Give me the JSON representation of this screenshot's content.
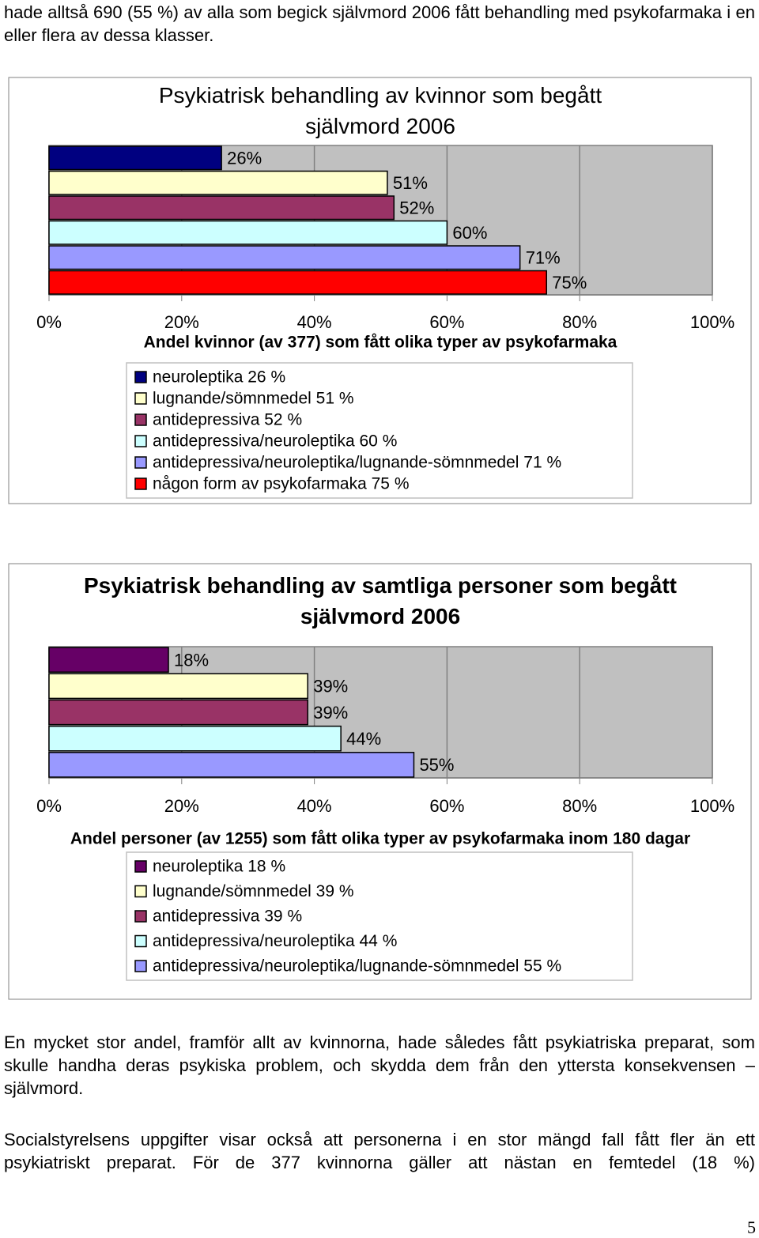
{
  "intro": "hade alltså 690 (55 %) av alla som begick självmord 2006 fått behandling med psykofarmaka i en eller flera av dessa klasser.",
  "chart_data": [
    {
      "type": "bar",
      "orientation": "horizontal",
      "title": "Psykiatrisk behandling av kvinnor som begått självmord 2006",
      "x_label": "Andel kvinnor (av 377) som fått olika typer av psykofarmaka",
      "xlim": [
        0,
        100
      ],
      "xticks": [
        {
          "value": 0,
          "label": "0%"
        },
        {
          "value": 20,
          "label": "20%"
        },
        {
          "value": 40,
          "label": "40%"
        },
        {
          "value": 60,
          "label": "60%"
        },
        {
          "value": 80,
          "label": "80%"
        },
        {
          "value": 100,
          "label": "100%"
        }
      ],
      "grid": true,
      "series": [
        {
          "name": "neuroleptika 26 %",
          "color": "#000080",
          "values": [
            26
          ],
          "value_labels": [
            "26%"
          ]
        },
        {
          "name": "lugnande/sömnmedel 51 %",
          "color": "#ffffcc",
          "values": [
            51
          ],
          "value_labels": [
            "51%"
          ]
        },
        {
          "name": "antidepressiva 52 %",
          "color": "#993366",
          "values": [
            52
          ],
          "value_labels": [
            "52%"
          ]
        },
        {
          "name": "antidepressiva/neuroleptika 60 %",
          "color": "#ccffff",
          "values": [
            60
          ],
          "value_labels": [
            "60%"
          ]
        },
        {
          "name": "antidepressiva/neuroleptika/lugnande-sömnmedel 71 %",
          "color": "#9999ff",
          "values": [
            71
          ],
          "value_labels": [
            "71%"
          ]
        },
        {
          "name": "någon form av psykofarmaka 75 %",
          "color": "#ff0000",
          "values": [
            75
          ],
          "value_labels": [
            "75%"
          ]
        }
      ]
    },
    {
      "type": "bar",
      "orientation": "horizontal",
      "title": "Psykiatrisk behandling av samtliga personer som begått självmord 2006",
      "x_label": "Andel personer (av 1255) som fått olika typer av psykofarmaka inom 180 dagar",
      "xlim": [
        0,
        100
      ],
      "xticks": [
        {
          "value": 0,
          "label": "0%"
        },
        {
          "value": 20,
          "label": "20%"
        },
        {
          "value": 40,
          "label": "40%"
        },
        {
          "value": 60,
          "label": "60%"
        },
        {
          "value": 80,
          "label": "80%"
        },
        {
          "value": 100,
          "label": "100%"
        }
      ],
      "grid": true,
      "series": [
        {
          "name": "neuroleptika 18 %",
          "color": "#660066",
          "values": [
            18
          ],
          "value_labels": [
            "18%"
          ]
        },
        {
          "name": "lugnande/sömnmedel 39 %",
          "color": "#ffffcc",
          "values": [
            39
          ],
          "value_labels": [
            "39%"
          ]
        },
        {
          "name": "antidepressiva 39 %",
          "color": "#993366",
          "values": [
            39
          ],
          "value_labels": [
            "39%"
          ]
        },
        {
          "name": "antidepressiva/neuroleptika 44 %",
          "color": "#ccffff",
          "values": [
            44
          ],
          "value_labels": [
            "44%"
          ]
        },
        {
          "name": "antidepressiva/neuroleptika/lugnande-sömnmedel 55 %",
          "color": "#9999ff",
          "values": [
            55
          ],
          "value_labels": [
            "55%"
          ]
        }
      ]
    }
  ],
  "paragraphs": [
    "En mycket stor andel, framför allt av kvinnorna, hade således fått psykiatriska preparat, som skulle handha deras psykiska problem, och skydda dem från den yttersta konsekvensen – självmord.",
    "Socialstyrelsens uppgifter visar också att personerna i en stor mängd fall fått fler än ett psykiatriskt preparat. För de 377 kvinnorna gäller att nästan en femtedel (18 %)"
  ],
  "page_number": "5"
}
